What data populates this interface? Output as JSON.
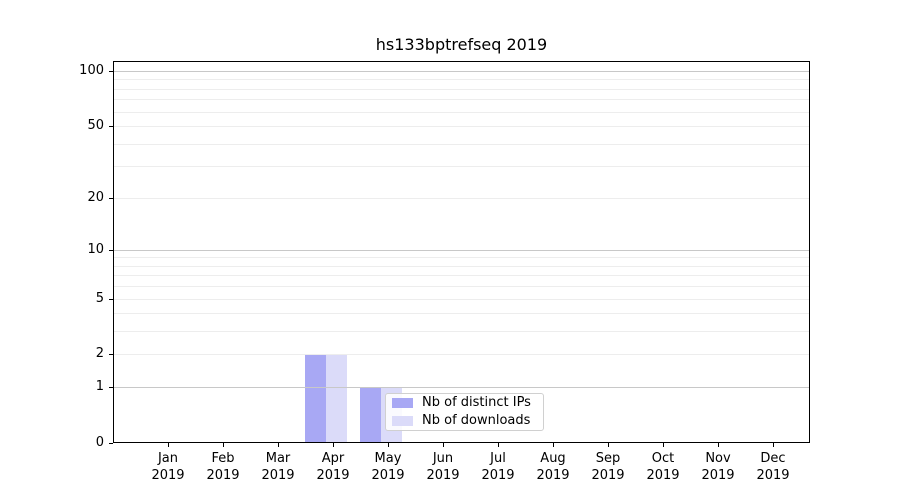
{
  "title": "hs133bptrefseq 2019",
  "chart_data": {
    "type": "bar",
    "title": "hs133bptrefseq 2019",
    "categories": [
      "Jan",
      "Feb",
      "Mar",
      "Apr",
      "May",
      "Jun",
      "Jul",
      "Aug",
      "Sep",
      "Oct",
      "Nov",
      "Dec"
    ],
    "year_label": "2019",
    "series": [
      {
        "name": "Nb of distinct IPs",
        "color": "#a8a8f4",
        "values": [
          0,
          0,
          0,
          2,
          1,
          0,
          0,
          0,
          0,
          0,
          0,
          0
        ]
      },
      {
        "name": "Nb of downloads",
        "color": "#dbdbf9",
        "values": [
          0,
          0,
          0,
          2,
          1,
          0,
          0,
          0,
          0,
          0,
          0,
          0
        ]
      }
    ],
    "yscale": "log10(value+1)",
    "ylim": [
      0,
      100
    ],
    "y_tick_values": [
      0,
      1,
      2,
      5,
      10,
      20,
      50,
      100
    ],
    "major_grid_values": [
      1,
      10,
      100
    ],
    "minor_grid_values": [
      2,
      3,
      4,
      5,
      6,
      7,
      8,
      9,
      20,
      30,
      40,
      50,
      60,
      70,
      80,
      90
    ],
    "grid": true,
    "legend_position": "lower center, inside plot"
  },
  "colors": {
    "background": "#ffffff",
    "axis": "#000000",
    "text": "#000000",
    "major_grid": "#c8c8c8",
    "minor_grid": "#ededed",
    "legend_border": "#d0d0d0",
    "legend_background": "rgba(255,255,255,0.85)"
  }
}
